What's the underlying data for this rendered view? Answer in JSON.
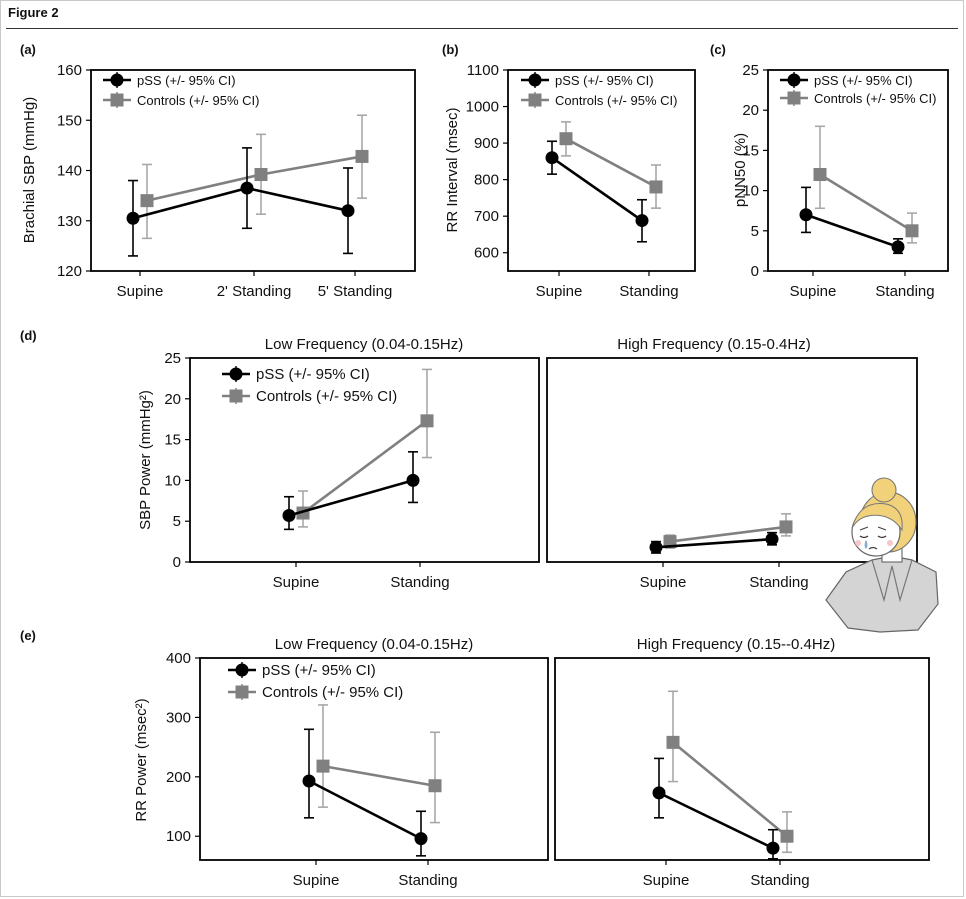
{
  "figure": {
    "title": "Figure 2"
  },
  "colors": {
    "pss": "#000000",
    "controls": "#808080",
    "controls_err": "#a8a8a8",
    "axis": "#000000"
  },
  "legend": {
    "pss": "pSS (+/- 95% CI)",
    "controls": "Controls (+/- 95% CI)"
  },
  "decoration": {
    "name": "worried-woman-illustration"
  },
  "chart_data": [
    {
      "id": "a",
      "panel_label": "(a)",
      "type": "line",
      "title": "",
      "ylabel": "Brachial SBP (mmHg)",
      "xlabel": "",
      "categories": [
        "Supine",
        "2' Standing",
        "5' Standing"
      ],
      "ylim": [
        120,
        160
      ],
      "yticks": [
        120,
        130,
        140,
        150,
        160
      ],
      "series": [
        {
          "name": "pSS (+/- 95% CI)",
          "values": [
            130.5,
            136.5,
            132
          ],
          "err_low": [
            123,
            128.5,
            123.5
          ],
          "err_high": [
            138,
            144.5,
            140.5
          ]
        },
        {
          "name": "Controls (+/- 95% CI)",
          "values": [
            134,
            139.2,
            142.8
          ],
          "err_low": [
            126.5,
            131.3,
            134.5
          ],
          "err_high": [
            141.2,
            147.2,
            151
          ]
        }
      ]
    },
    {
      "id": "b",
      "panel_label": "(b)",
      "type": "line",
      "title": "",
      "ylabel": "RR Interval (msec)",
      "xlabel": "",
      "categories": [
        "Supine",
        "Standing"
      ],
      "ylim": [
        550,
        1100
      ],
      "yticks": [
        600,
        700,
        800,
        900,
        1000,
        1100
      ],
      "series": [
        {
          "name": "pSS (+/- 95% CI)",
          "values": [
            860,
            688
          ],
          "err_low": [
            815,
            630
          ],
          "err_high": [
            905,
            745
          ]
        },
        {
          "name": "Controls (+/- 95% CI)",
          "values": [
            912,
            780
          ],
          "err_low": [
            865,
            722
          ],
          "err_high": [
            958,
            840
          ]
        }
      ]
    },
    {
      "id": "c",
      "panel_label": "(c)",
      "type": "line",
      "title": "",
      "ylabel": "pNN50 (%)",
      "xlabel": "",
      "categories": [
        "Supine",
        "Standing"
      ],
      "ylim": [
        0,
        25
      ],
      "yticks": [
        0,
        5,
        10,
        15,
        20,
        25
      ],
      "series": [
        {
          "name": "pSS (+/- 95% CI)",
          "values": [
            7,
            3
          ],
          "err_low": [
            4.8,
            2.2
          ],
          "err_high": [
            10.4,
            4
          ]
        },
        {
          "name": "Controls (+/- 95% CI)",
          "values": [
            12,
            5
          ],
          "err_low": [
            7.8,
            3.5
          ],
          "err_high": [
            18,
            7.2
          ]
        }
      ]
    },
    {
      "id": "d1",
      "panel_label": "(d)",
      "type": "line",
      "title": "Low Frequency (0.04-0.15Hz)",
      "ylabel": "SBP Power (mmHg²)",
      "xlabel": "",
      "categories": [
        "Supine",
        "Standing"
      ],
      "ylim": [
        0,
        25
      ],
      "yticks": [
        0,
        5,
        10,
        15,
        20,
        25
      ],
      "series": [
        {
          "name": "pSS (+/- 95% CI)",
          "values": [
            5.7,
            10
          ],
          "err_low": [
            4,
            7.3
          ],
          "err_high": [
            8,
            13.5
          ]
        },
        {
          "name": "Controls (+/- 95% CI)",
          "values": [
            6,
            17.3
          ],
          "err_low": [
            4.3,
            12.8
          ],
          "err_high": [
            8.7,
            23.6
          ]
        }
      ]
    },
    {
      "id": "d2",
      "panel_label": "",
      "type": "line",
      "title": "High Frequency (0.15-0.4Hz)",
      "ylabel": "",
      "xlabel": "",
      "categories": [
        "Supine",
        "Standing"
      ],
      "ylim": [
        0,
        25
      ],
      "yticks": [],
      "series": [
        {
          "name": "pSS (+/- 95% CI)",
          "values": [
            1.8,
            2.8
          ],
          "err_low": [
            1.1,
            2.1
          ],
          "err_high": [
            2.5,
            3.6
          ]
        },
        {
          "name": "Controls (+/- 95% CI)",
          "values": [
            2.5,
            4.3
          ],
          "err_low": [
            1.7,
            3.2
          ],
          "err_high": [
            3.3,
            5.9
          ]
        }
      ]
    },
    {
      "id": "e1",
      "panel_label": "(e)",
      "type": "line",
      "title": "Low Frequency (0.04-0.15Hz)",
      "ylabel": "RR Power (msec²)",
      "xlabel": "",
      "categories": [
        "Supine",
        "Standing"
      ],
      "ylim": [
        60,
        400
      ],
      "yticks": [
        100,
        200,
        300,
        400
      ],
      "series": [
        {
          "name": "pSS (+/- 95% CI)",
          "values": [
            193,
            96
          ],
          "err_low": [
            131,
            67
          ],
          "err_high": [
            280,
            142
          ]
        },
        {
          "name": "Controls (+/- 95% CI)",
          "values": [
            218,
            185
          ],
          "err_low": [
            149,
            123
          ],
          "err_high": [
            321,
            275
          ]
        }
      ]
    },
    {
      "id": "e2",
      "panel_label": "",
      "type": "line",
      "title": "High Frequency (0.15--0.4Hz)",
      "ylabel": "",
      "xlabel": "",
      "categories": [
        "Supine",
        "Standing"
      ],
      "ylim": [
        60,
        400
      ],
      "yticks": [],
      "series": [
        {
          "name": "pSS (+/- 95% CI)",
          "values": [
            173,
            80
          ],
          "err_low": [
            131,
            62
          ],
          "err_high": [
            231,
            111
          ]
        },
        {
          "name": "Controls (+/- 95% CI)",
          "values": [
            258,
            100
          ],
          "err_low": [
            192,
            73
          ],
          "err_high": [
            344,
            141
          ]
        }
      ]
    }
  ]
}
